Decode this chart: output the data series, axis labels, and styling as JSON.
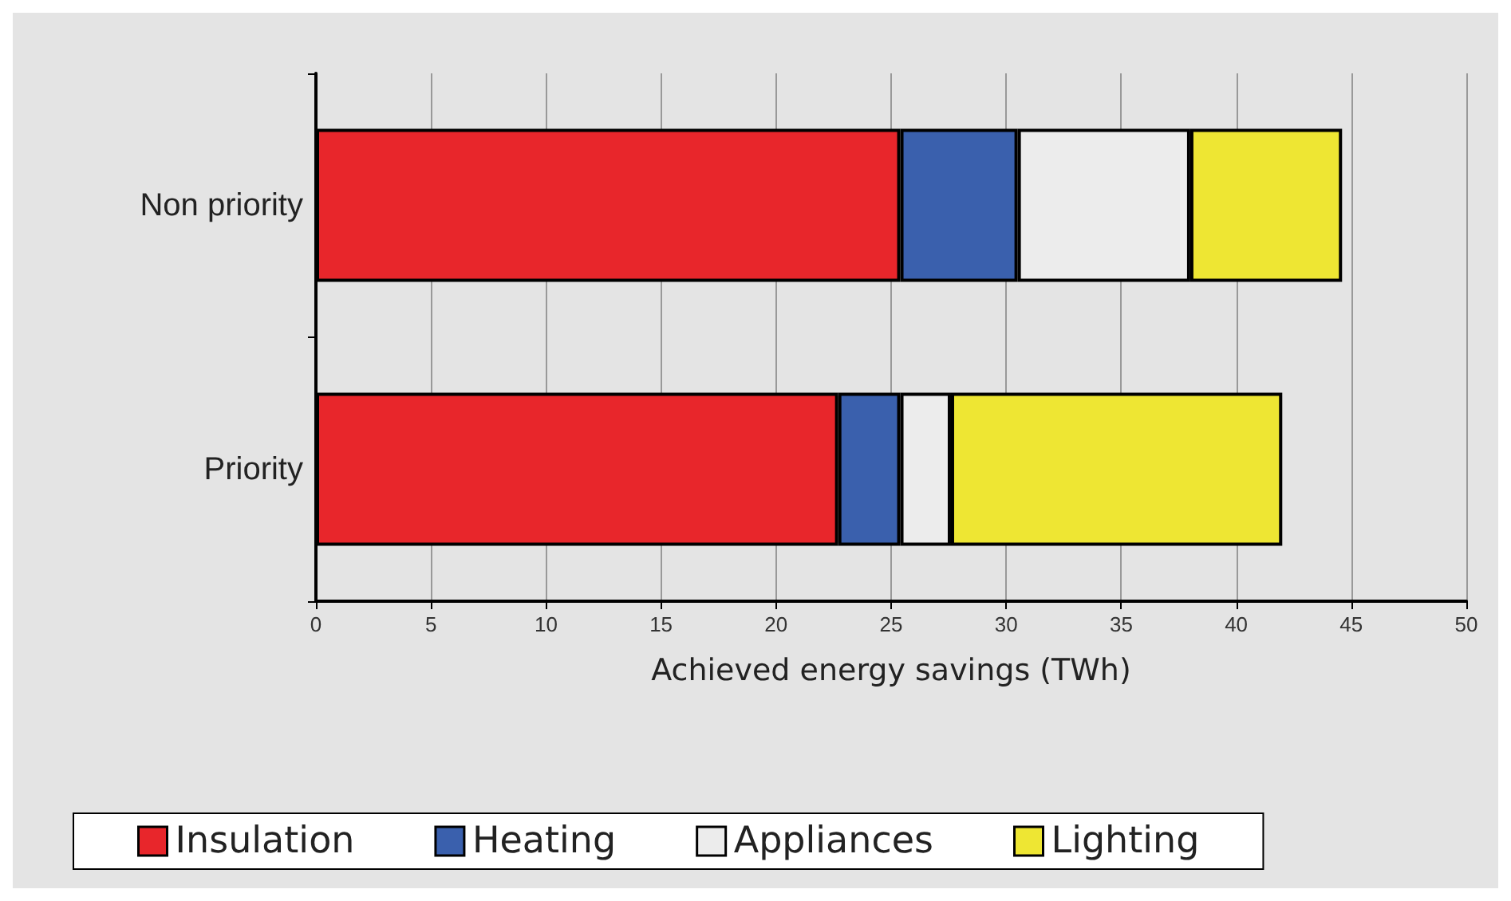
{
  "chart_data": {
    "type": "bar",
    "orientation": "horizontal",
    "stacked": true,
    "xlabel": "Achieved energy savings (TWh)",
    "categories": [
      "Non priority",
      "Priority"
    ],
    "series": [
      {
        "name": "Insulation",
        "color": "#e8262b",
        "values": [
          25.4,
          22.7
        ]
      },
      {
        "name": "Heating",
        "color": "#3a60ad",
        "values": [
          5.1,
          2.7
        ]
      },
      {
        "name": "Appliances",
        "color": "#ececec",
        "values": [
          7.5,
          2.2
        ]
      },
      {
        "name": "Lighting",
        "color": "#eee633",
        "values": [
          6.6,
          14.4
        ]
      }
    ],
    "xlim": [
      0,
      50
    ],
    "xticks": [
      0,
      5,
      10,
      15,
      20,
      25,
      30,
      35,
      40,
      45,
      50
    ],
    "grid": "x",
    "legend": "bottom"
  }
}
